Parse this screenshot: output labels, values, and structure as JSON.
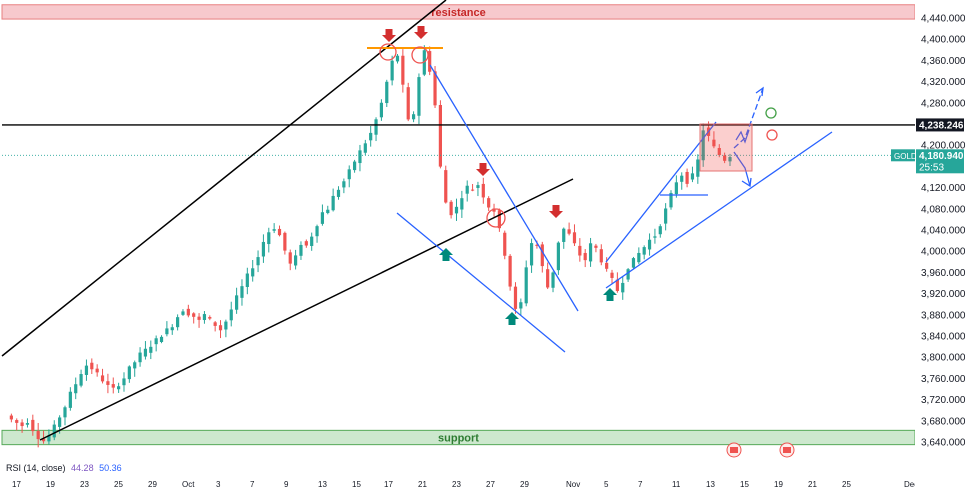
{
  "chart_data": {
    "type": "candlestick",
    "symbol": "GOLD",
    "last_price": "4,180.940",
    "countdown": "25:53",
    "level_line": "4,238.246",
    "zones": [
      {
        "label": "resistance",
        "low": 4438,
        "high": 4465,
        "color": "#f7c4c8"
      },
      {
        "label": "support",
        "low": 3635,
        "high": 3662,
        "color": "#c8e6c9"
      }
    ],
    "y_ticks": [
      "4,440.000",
      "4,400.000",
      "4,360.000",
      "4,320.000",
      "4,280.000",
      "4,200.000",
      "4,120.000",
      "4,080.000",
      "4,040.000",
      "4,000.000",
      "3,960.000",
      "3,920.000",
      "3,880.000",
      "3,840.000",
      "3,800.000",
      "3,760.000",
      "3,720.000",
      "3,680.000",
      "3,640.000"
    ],
    "y_tick_values": [
      4440,
      4400,
      4360,
      4320,
      4280,
      4200,
      4120,
      4080,
      4040,
      4000,
      3960,
      3920,
      3880,
      3840,
      3800,
      3760,
      3720,
      3680,
      3640
    ],
    "ylim": [
      3618,
      4470
    ],
    "x_ticks": [
      "17",
      "19",
      "23",
      "25",
      "29",
      "Oct",
      "3",
      "7",
      "9",
      "13",
      "15",
      "17",
      "21",
      "23",
      "27",
      "29",
      "Nov",
      "5",
      "7",
      "11",
      "13",
      "15",
      "19",
      "21",
      "25",
      "Dec"
    ],
    "series_ohlc_path": [
      3690,
      3682,
      3676,
      3671,
      3680,
      3664,
      3650,
      3642,
      3652,
      3668,
      3688,
      3707,
      3731,
      3750,
      3771,
      3785,
      3779,
      3768,
      3757,
      3745,
      3739,
      3750,
      3761,
      3778,
      3791,
      3805,
      3813,
      3823,
      3832,
      3843,
      3851,
      3861,
      3877,
      3890,
      3883,
      3877,
      3868,
      3880,
      3869,
      3861,
      3852,
      3868,
      3890,
      3912,
      3932,
      3953,
      3972,
      3990,
      4018,
      4037,
      4045,
      4030,
      4001,
      3975,
      3988,
      4015,
      4010,
      4030,
      4052,
      4073,
      4081,
      4102,
      4118,
      4132,
      4150,
      4170,
      4188,
      4205,
      4222,
      4248,
      4279,
      4319,
      4357,
      4370,
      4310,
      4245,
      4260,
      4330,
      4378,
      4342,
      4275,
      4158,
      4092,
      4072,
      4082,
      4105,
      4121,
      4118,
      4126,
      4105,
      4085,
      4077,
      4039,
      3995,
      3935,
      3888,
      3902,
      3972,
      4016,
      4010,
      3970,
      3932,
      3962,
      4018,
      4042,
      4031,
      4012,
      3993,
      3984,
      4012,
      4005,
      3983,
      3962,
      3945,
      3926,
      3945,
      3971,
      3982,
      3996,
      4008,
      4021,
      4030,
      4052,
      4078,
      4106,
      4132,
      4145,
      4132,
      4142,
      4171,
      4230,
      4215,
      4195,
      4182,
      4173,
      4181
    ],
    "rsi": {
      "label": "RSI (14, close)",
      "values": [
        "44.28",
        "50.36"
      ]
    },
    "annotations": [
      {
        "kind": "sell-arrow",
        "count": 4
      },
      {
        "kind": "buy-arrow",
        "count": 3
      },
      {
        "kind": "flag-icon",
        "count": 2
      }
    ]
  }
}
